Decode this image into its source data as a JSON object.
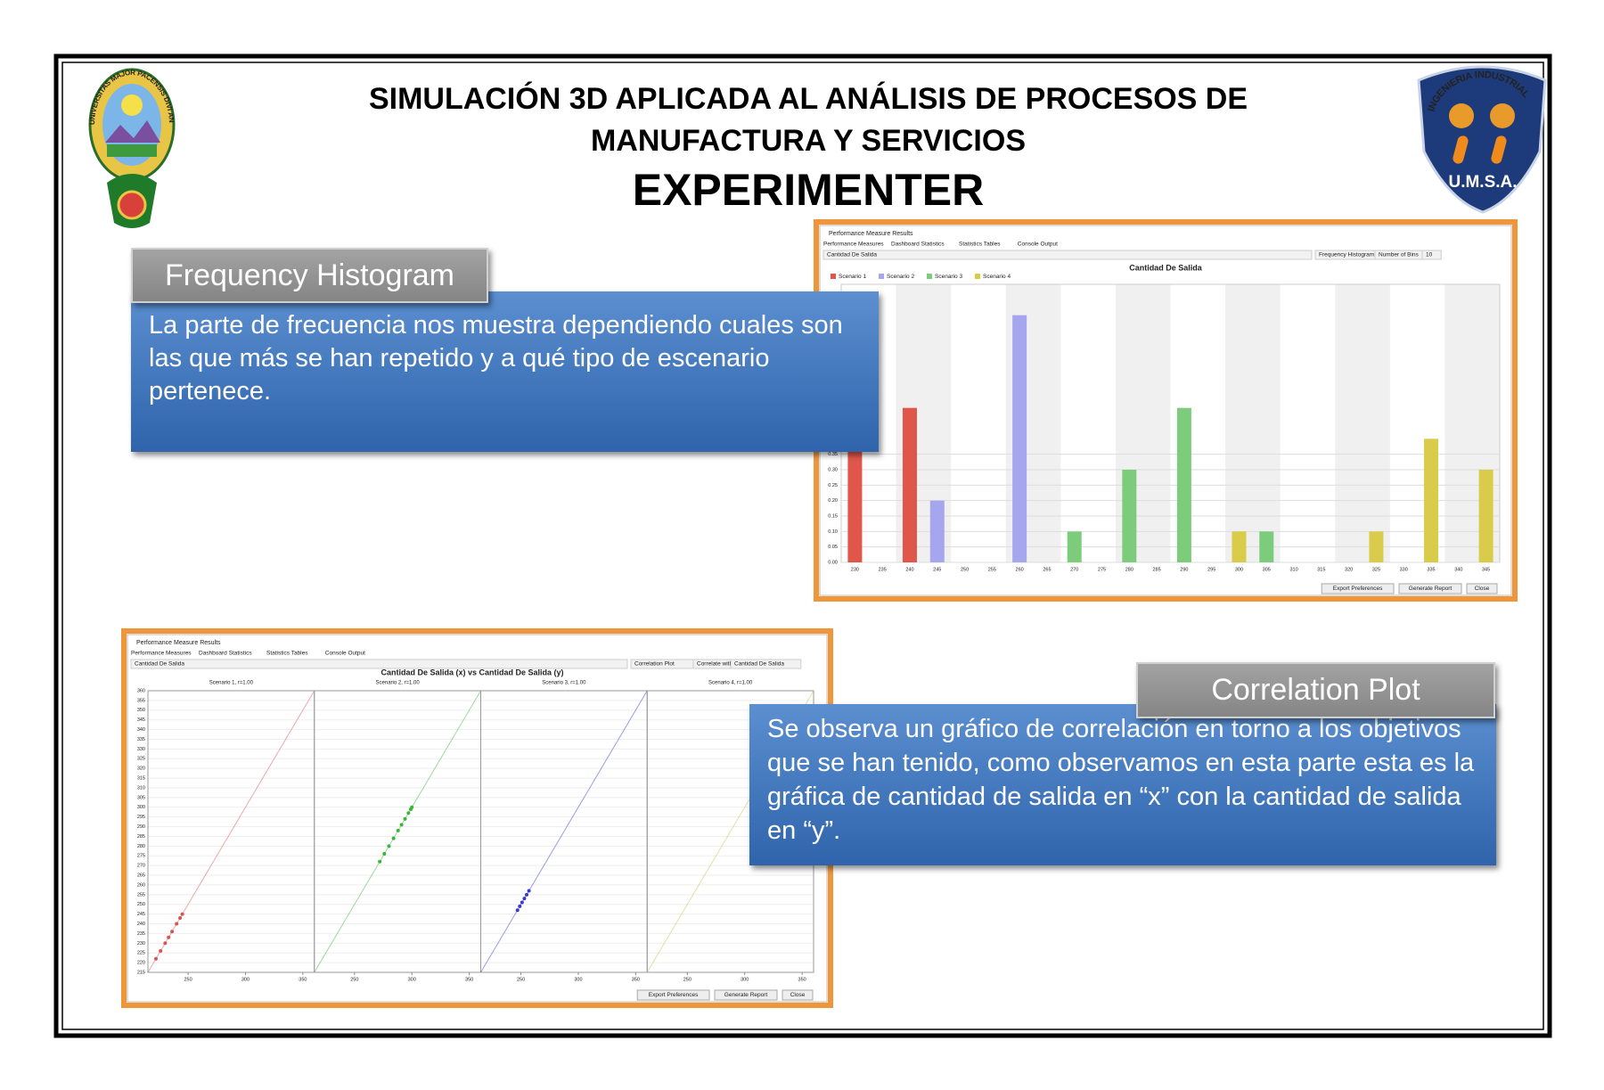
{
  "header": {
    "title_line1": "SIMULACIÓN 3D APLICADA AL ANÁLISIS DE PROCESOS DE",
    "title_line2": "MANUFACTURA Y SERVICIOS",
    "subtitle": "EXPERIMENTER"
  },
  "logos": {
    "left": "UNIVERSITAS MAJOR PACENSIS DIVI ANDREAE",
    "right_top": "INGENIERIA INDUSTRIAL",
    "right_bottom": "U.M.S.A."
  },
  "callouts": [
    {
      "title": "Frequency Histogram",
      "text": "La parte de frecuencia nos muestra dependiendo cuales son las que más se han repetido y a qué tipo de escenario pertenece."
    },
    {
      "title": "Correlation Plot",
      "text": "Se observa un gráfico de correlación en torno a los objetivos que se han tenido, como observamos en esta parte  esta es la gráfica de cantidad de salida en “x” con la cantidad de salida en “y”."
    }
  ],
  "windows": [
    {
      "window_title": "Performance Measure Results",
      "tabs": [
        "Performance Measures",
        "Dashboard Statistics",
        "Statistics Tables",
        "Console Output"
      ],
      "controls": [
        "Cantidad De Salida",
        "Frequency Histogram",
        "Number of Bins",
        "10"
      ],
      "buttons": [
        "Export Preferences",
        "Generate Report",
        "Close"
      ]
    },
    {
      "window_title": "Performance Measure Results",
      "tabs": [
        "Performance Measures",
        "Dashboard Statistics",
        "Statistics Tables",
        "Console Output"
      ],
      "controls": [
        "Cantidad De Salida",
        "Correlation Plot",
        "Correlate with",
        "Cantidad De Salida"
      ],
      "buttons": [
        "Export Preferences",
        "Generate Report",
        "Close"
      ]
    }
  ],
  "chart_data": [
    {
      "type": "bar",
      "title": "Cantidad De Salida",
      "categories": [
        "230",
        "235",
        "240",
        "245",
        "250",
        "255",
        "260",
        "265",
        "270",
        "275",
        "280",
        "285",
        "290",
        "295",
        "300",
        "305",
        "310",
        "315",
        "320",
        "325",
        "330",
        "335",
        "340",
        "345"
      ],
      "series": [
        {
          "name": "Scenario 1",
          "color": "#e0564a",
          "values": [
            0.4,
            null,
            0.5,
            null,
            null,
            null,
            null,
            null,
            null,
            null,
            null,
            null,
            null,
            null,
            null,
            null,
            null,
            null,
            null,
            null,
            null,
            null,
            null,
            null
          ]
        },
        {
          "name": "Scenario 2",
          "color": "#a6a6ee",
          "values": [
            null,
            null,
            null,
            0.2,
            null,
            null,
            0.8,
            null,
            null,
            null,
            null,
            null,
            null,
            null,
            null,
            null,
            null,
            null,
            null,
            null,
            null,
            null,
            null,
            null
          ]
        },
        {
          "name": "Scenario 3",
          "color": "#7ccc7c",
          "values": [
            null,
            null,
            null,
            null,
            null,
            null,
            null,
            null,
            0.1,
            null,
            0.3,
            null,
            0.5,
            null,
            null,
            0.1,
            null,
            null,
            null,
            null,
            null,
            null,
            null,
            null
          ]
        },
        {
          "name": "Scenario 4",
          "color": "#d8cc4a",
          "values": [
            null,
            null,
            null,
            null,
            null,
            null,
            null,
            null,
            null,
            null,
            null,
            null,
            null,
            null,
            0.1,
            null,
            null,
            null,
            null,
            0.1,
            null,
            0.4,
            null,
            0.3
          ]
        }
      ],
      "ylim": [
        0,
        0.9
      ],
      "yticks": [
        {
          "value": 0,
          "label": "0.00"
        },
        {
          "value": 0.05,
          "label": "0.05"
        },
        {
          "value": 0.1,
          "label": "0.10"
        },
        {
          "value": 0.15,
          "label": "0.15"
        },
        {
          "value": 0.2,
          "label": "0.20"
        },
        {
          "value": 0.25,
          "label": "0.25"
        },
        {
          "value": 0.3,
          "label": "0.30"
        },
        {
          "value": 0.35,
          "label": "0.35"
        }
      ],
      "grid": true,
      "legend": "top-left"
    },
    {
      "type": "scatter",
      "title": "Cantidad De Salida (x) vs Cantidad De Salida (y)",
      "xlim": [
        215,
        360
      ],
      "ylim": [
        215,
        360
      ],
      "xticks": [
        250,
        300,
        350
      ],
      "yticks": [
        215,
        220,
        225,
        230,
        235,
        240,
        245,
        250,
        255,
        260,
        265,
        270,
        275,
        280,
        285,
        290,
        295,
        300,
        305,
        310,
        315,
        320,
        325,
        330,
        335,
        340,
        345,
        350,
        355,
        360
      ],
      "series": [
        {
          "name": "Scenario 1, r=1.00",
          "color": "#d9534f",
          "values": [
            222,
            226,
            230,
            233,
            236,
            240,
            243,
            245
          ]
        },
        {
          "name": "Scenario 2, r=1.00",
          "color": "#3cb43c",
          "values": [
            272,
            276,
            280,
            284,
            288,
            291,
            294,
            297,
            299,
            300
          ]
        },
        {
          "name": "Scenario 3, r=1.00",
          "color": "#3a3ad0",
          "values": [
            247,
            249,
            251,
            253,
            255,
            257
          ]
        },
        {
          "name": "Scenario 4, r=1.00",
          "color": "#c8c040",
          "values": []
        }
      ],
      "grid": true
    }
  ]
}
